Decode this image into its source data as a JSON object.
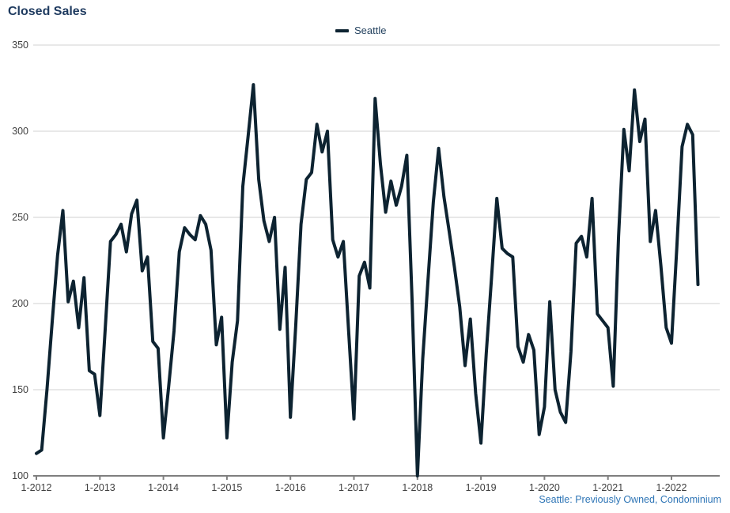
{
  "header": {
    "title": "Closed Sales"
  },
  "legend": {
    "label": "Seattle"
  },
  "footer": {
    "source": "Seattle: Previously Owned, Condominium"
  },
  "colors": {
    "title": "#1e3a5f",
    "legend_text": "#24425f",
    "line": "#0d2331",
    "gridline": "#d2d2d2",
    "axis": "#7f7f7f",
    "tick_text": "#404040",
    "source_text": "#2e75b6",
    "background": "#ffffff"
  },
  "chart_data": {
    "type": "line",
    "title": "Closed Sales",
    "series_name": "Seattle",
    "x_start_month": "1-2012",
    "x_end_month": "6-2022",
    "x_tick_labels": [
      "1-2012",
      "1-2013",
      "1-2014",
      "1-2015",
      "1-2016",
      "1-2017",
      "1-2018",
      "1-2019",
      "1-2020",
      "1-2021",
      "1-2022"
    ],
    "y_tick_labels": [
      "350",
      "300",
      "250",
      "200",
      "150",
      "100"
    ],
    "ylim": [
      100,
      350
    ],
    "grid": "horizontal",
    "legend_position": "top-center",
    "values_monthly": [
      113,
      115,
      150,
      190,
      228,
      254,
      201,
      213,
      186,
      215,
      161,
      159,
      135,
      185,
      236,
      240,
      246,
      230,
      252,
      260,
      219,
      227,
      178,
      174,
      122,
      152,
      184,
      230,
      244,
      240,
      237,
      251,
      246,
      231,
      176,
      192,
      122,
      166,
      190,
      268,
      297,
      327,
      272,
      248,
      236,
      250,
      185,
      221,
      134,
      187,
      246,
      272,
      276,
      304,
      288,
      300,
      237,
      227,
      236,
      184,
      133,
      216,
      224,
      209,
      319,
      281,
      253,
      271,
      257,
      268,
      286,
      201,
      100,
      168,
      214,
      259,
      290,
      262,
      242,
      221,
      198,
      164,
      191,
      148,
      119,
      171,
      215,
      261,
      232,
      229,
      227,
      175,
      166,
      182,
      173,
      124,
      140,
      201,
      150,
      137,
      131,
      172,
      235,
      239,
      227,
      261,
      194,
      190,
      186,
      152,
      239,
      301,
      277,
      324,
      294,
      307,
      236,
      254,
      222,
      186,
      177,
      232,
      291,
      304,
      298,
      211
    ]
  }
}
